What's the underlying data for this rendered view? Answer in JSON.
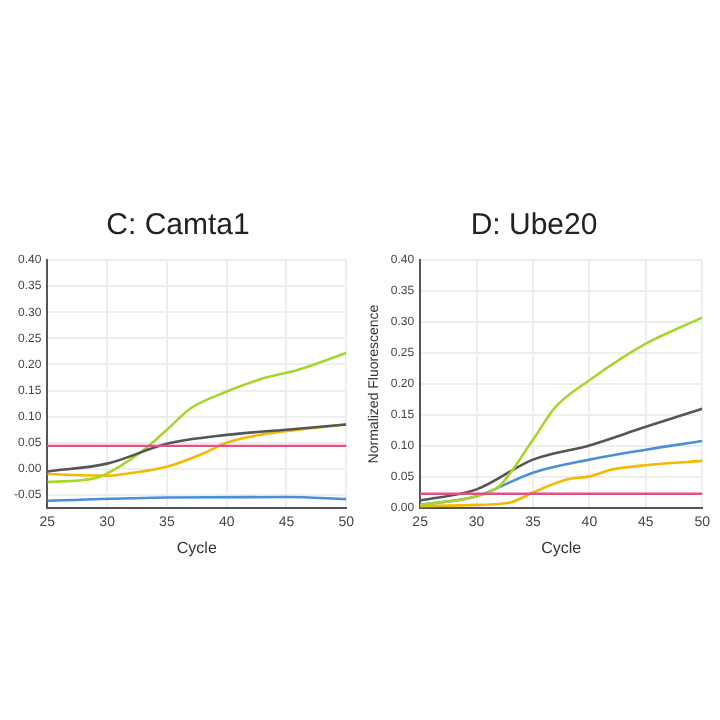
{
  "chart_data": [
    {
      "type": "line",
      "title": "C: Camta1",
      "xlabel": "Cycle",
      "xlim": [
        25,
        50
      ],
      "xticks": [
        25,
        30,
        35,
        40,
        45,
        50
      ],
      "ylim": [
        -0.075,
        0.4
      ],
      "yticks": [
        {
          "value": -0.05,
          "label": "-0.05"
        },
        {
          "value": 0,
          "label": "0.00"
        },
        {
          "value": 0.05,
          "label": "0.05"
        },
        {
          "value": 0.1,
          "label": "0.10"
        },
        {
          "value": 0.15,
          "label": "0.15"
        },
        {
          "value": 0.2,
          "label": "0.20"
        },
        {
          "value": 0.25,
          "label": "0.25"
        },
        {
          "value": 0.3,
          "label": "0.30"
        },
        {
          "value": 0.35,
          "label": "0.35"
        },
        {
          "value": 0.4,
          "label": "0.40"
        }
      ],
      "grid": true,
      "marker": "none",
      "line_style": "solid",
      "ref_lines": [
        {
          "axis": "y",
          "value": 0.044,
          "color": "#e0508a"
        }
      ],
      "series": [
        {
          "color": "#555555",
          "x": [
            25,
            30,
            35,
            40,
            45,
            50
          ],
          "values": [
            -0.005,
            0.01,
            0.048,
            0.065,
            0.075,
            0.085
          ]
        },
        {
          "color": "#a6d62a",
          "x": [
            25,
            29,
            31,
            33,
            35,
            37,
            40,
            43,
            46,
            50
          ],
          "values": [
            -0.025,
            -0.018,
            0.004,
            0.035,
            0.075,
            0.116,
            0.148,
            0.173,
            0.19,
            0.222
          ]
        },
        {
          "color": "#f5b800",
          "x": [
            25,
            30,
            32,
            35,
            38,
            40,
            43,
            46,
            50
          ],
          "values": [
            -0.01,
            -0.013,
            -0.008,
            0.004,
            0.029,
            0.05,
            0.066,
            0.075,
            0.085
          ]
        },
        {
          "color": "#4a90d9",
          "x": [
            25,
            35,
            45,
            50
          ],
          "values": [
            -0.061,
            -0.055,
            -0.054,
            -0.058
          ]
        }
      ]
    },
    {
      "type": "line",
      "title": "D: Ube20",
      "xlabel": "Cycle",
      "ylabel": "Normalized Fluorescence",
      "xlim": [
        25,
        50
      ],
      "xticks": [
        25,
        30,
        35,
        40,
        45,
        50
      ],
      "ylim": [
        0,
        0.4
      ],
      "yticks": [
        {
          "value": 0,
          "label": "0.00"
        },
        {
          "value": 0.05,
          "label": "0.05"
        },
        {
          "value": 0.1,
          "label": "0.10"
        },
        {
          "value": 0.15,
          "label": "0.15"
        },
        {
          "value": 0.2,
          "label": "0.20"
        },
        {
          "value": 0.25,
          "label": "0.25"
        },
        {
          "value": 0.3,
          "label": "0.30"
        },
        {
          "value": 0.35,
          "label": "0.35"
        },
        {
          "value": 0.4,
          "label": "0.40"
        }
      ],
      "grid": true,
      "marker": "none",
      "line_style": "solid",
      "ref_lines": [
        {
          "axis": "y",
          "value": 0.023,
          "color": "#e0508a"
        }
      ],
      "series": [
        {
          "color": "#a6d62a",
          "x": [
            25,
            30,
            32,
            35,
            37,
            40,
            45,
            50
          ],
          "values": [
            0.005,
            0.019,
            0.035,
            0.11,
            0.163,
            0.206,
            0.265,
            0.307
          ]
        },
        {
          "color": "#555555",
          "x": [
            25,
            30,
            35,
            40,
            45,
            50
          ],
          "values": [
            0.012,
            0.03,
            0.078,
            0.101,
            0.131,
            0.16
          ]
        },
        {
          "color": "#4a90d9",
          "x": [
            25,
            30,
            35,
            40,
            45,
            50
          ],
          "values": [
            0.005,
            0.019,
            0.057,
            0.078,
            0.094,
            0.108
          ]
        },
        {
          "color": "#f5b800",
          "x": [
            25,
            30,
            33,
            35,
            38,
            40,
            42,
            45,
            50
          ],
          "values": [
            0.003,
            0.005,
            0.009,
            0.025,
            0.046,
            0.051,
            0.062,
            0.069,
            0.076
          ]
        }
      ]
    }
  ]
}
